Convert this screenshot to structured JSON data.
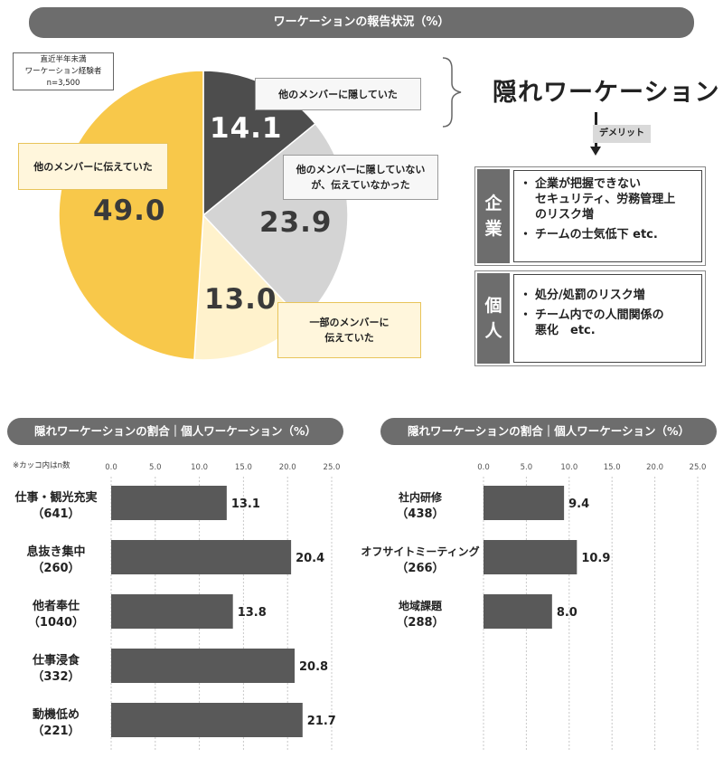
{
  "top": {
    "title": "ワーケーションの報告状況（%）",
    "sample_note": [
      "直近半年未満",
      "ワーケーション経験者",
      "n=3,500"
    ]
  },
  "pie_callouts": {
    "hid": "他のメンバーに隠していた",
    "not_hid_not_told": [
      "他のメンバーに隠していない",
      "が、伝えていなかった"
    ],
    "told_some": [
      "一部のメンバーに",
      "伝えていた"
    ],
    "told_others": "他のメンバーに伝えていた"
  },
  "pie_value_labels": {
    "hid": "14.1",
    "not_hid_not_told": "23.9",
    "told_some": "13.0",
    "told_others": "49.0"
  },
  "demerits": {
    "title": "隠れワーケーション",
    "tag": "デメリット",
    "company": {
      "label": [
        "企",
        "業"
      ],
      "items": [
        [
          "企業が把握できない",
          "セキュリティ、労務管理上",
          "のリスク増"
        ],
        [
          "チームの士気低下 etc."
        ]
      ]
    },
    "individual": {
      "label": [
        "個",
        "人"
      ],
      "items": [
        [
          "処分/処罰のリスク増"
        ],
        [
          "チーム内での人間関係の",
          "悪化　etc."
        ]
      ]
    }
  },
  "left_chart_title": "隠れワーケーションの割合｜個人ワーケーション（%）",
  "right_chart_title": "隠れワーケーションの割合｜個人ワーケーション（%）",
  "bar_note": "※カッコ内はn数",
  "colors": {
    "banner": "#6d6d6d",
    "hid": "#4d4d4d",
    "not_hid_not_told": "#d4d4d4",
    "told_some": "#fff2cc",
    "told_others": "#f8c84a",
    "bar": "#595959"
  },
  "chart_data": [
    {
      "type": "pie",
      "title": "ワーケーションの報告状況（%）",
      "slices": [
        {
          "name": "他のメンバーに隠していた",
          "value": 14.1
        },
        {
          "name": "他のメンバーに隠していないが、伝えていなかった",
          "value": 23.9
        },
        {
          "name": "一部のメンバーに伝えていた",
          "value": 13.0
        },
        {
          "name": "他のメンバーに伝えていた",
          "value": 49.0
        }
      ]
    },
    {
      "type": "bar",
      "orientation": "horizontal",
      "title": "隠れワーケーションの割合｜個人ワーケーション（%）",
      "categories": [
        "仕事・観光充実",
        "息抜き集中",
        "他者奉仕",
        "仕事浸食",
        "動機低め"
      ],
      "n": [
        "（641）",
        "（260）",
        "（1040）",
        "（332）",
        "（221）"
      ],
      "values": [
        13.1,
        20.4,
        13.8,
        20.8,
        21.7
      ],
      "xlim": [
        0,
        25
      ],
      "ticks": [
        "0.0",
        "5.0",
        "10.0",
        "15.0",
        "20.0",
        "25.0"
      ]
    },
    {
      "type": "bar",
      "orientation": "horizontal",
      "title": "隠れワーケーションの割合｜個人ワーケーション（%）",
      "categories": [
        "社内研修",
        "オフサイトミーティング",
        "地域課題"
      ],
      "n": [
        "（438）",
        "（266）",
        "（288）"
      ],
      "values": [
        9.4,
        10.9,
        8.0
      ],
      "xlim": [
        0,
        25
      ],
      "ticks": [
        "0.0",
        "5.0",
        "10.0",
        "15.0",
        "20.0",
        "25.0"
      ]
    }
  ]
}
